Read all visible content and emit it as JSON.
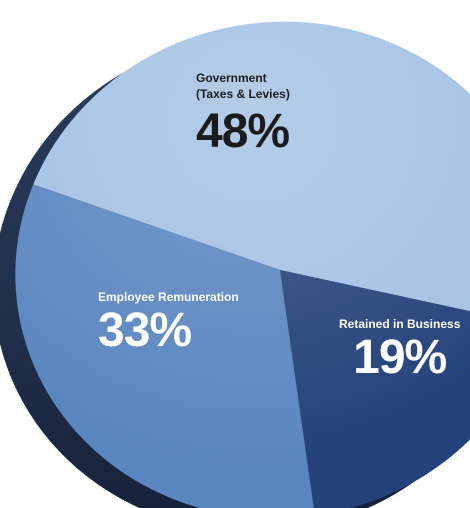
{
  "chart_data": {
    "type": "pie",
    "slices": [
      {
        "label": "Government (Taxes & Levies)",
        "label_lines": [
          "Government",
          "(Taxes & Levies)"
        ],
        "value": 48,
        "display": "48%",
        "color": "#a3c1e4"
      },
      {
        "label": "Retained in Business",
        "label_lines": [
          "Retained in Business"
        ],
        "value": 19,
        "display": "19%",
        "color": "#23427a"
      },
      {
        "label": "Employee Remuneration",
        "label_lines": [
          "Employee Remuneration"
        ],
        "value": 33,
        "display": "33%",
        "color": "#5a86c0"
      }
    ],
    "style": "3d-tilted"
  },
  "colors": {
    "edge_dark": "#16213a",
    "edge_mid": "#2c3e5e",
    "label_dark": "#1b1b1b",
    "label_light": "#ffffff"
  }
}
